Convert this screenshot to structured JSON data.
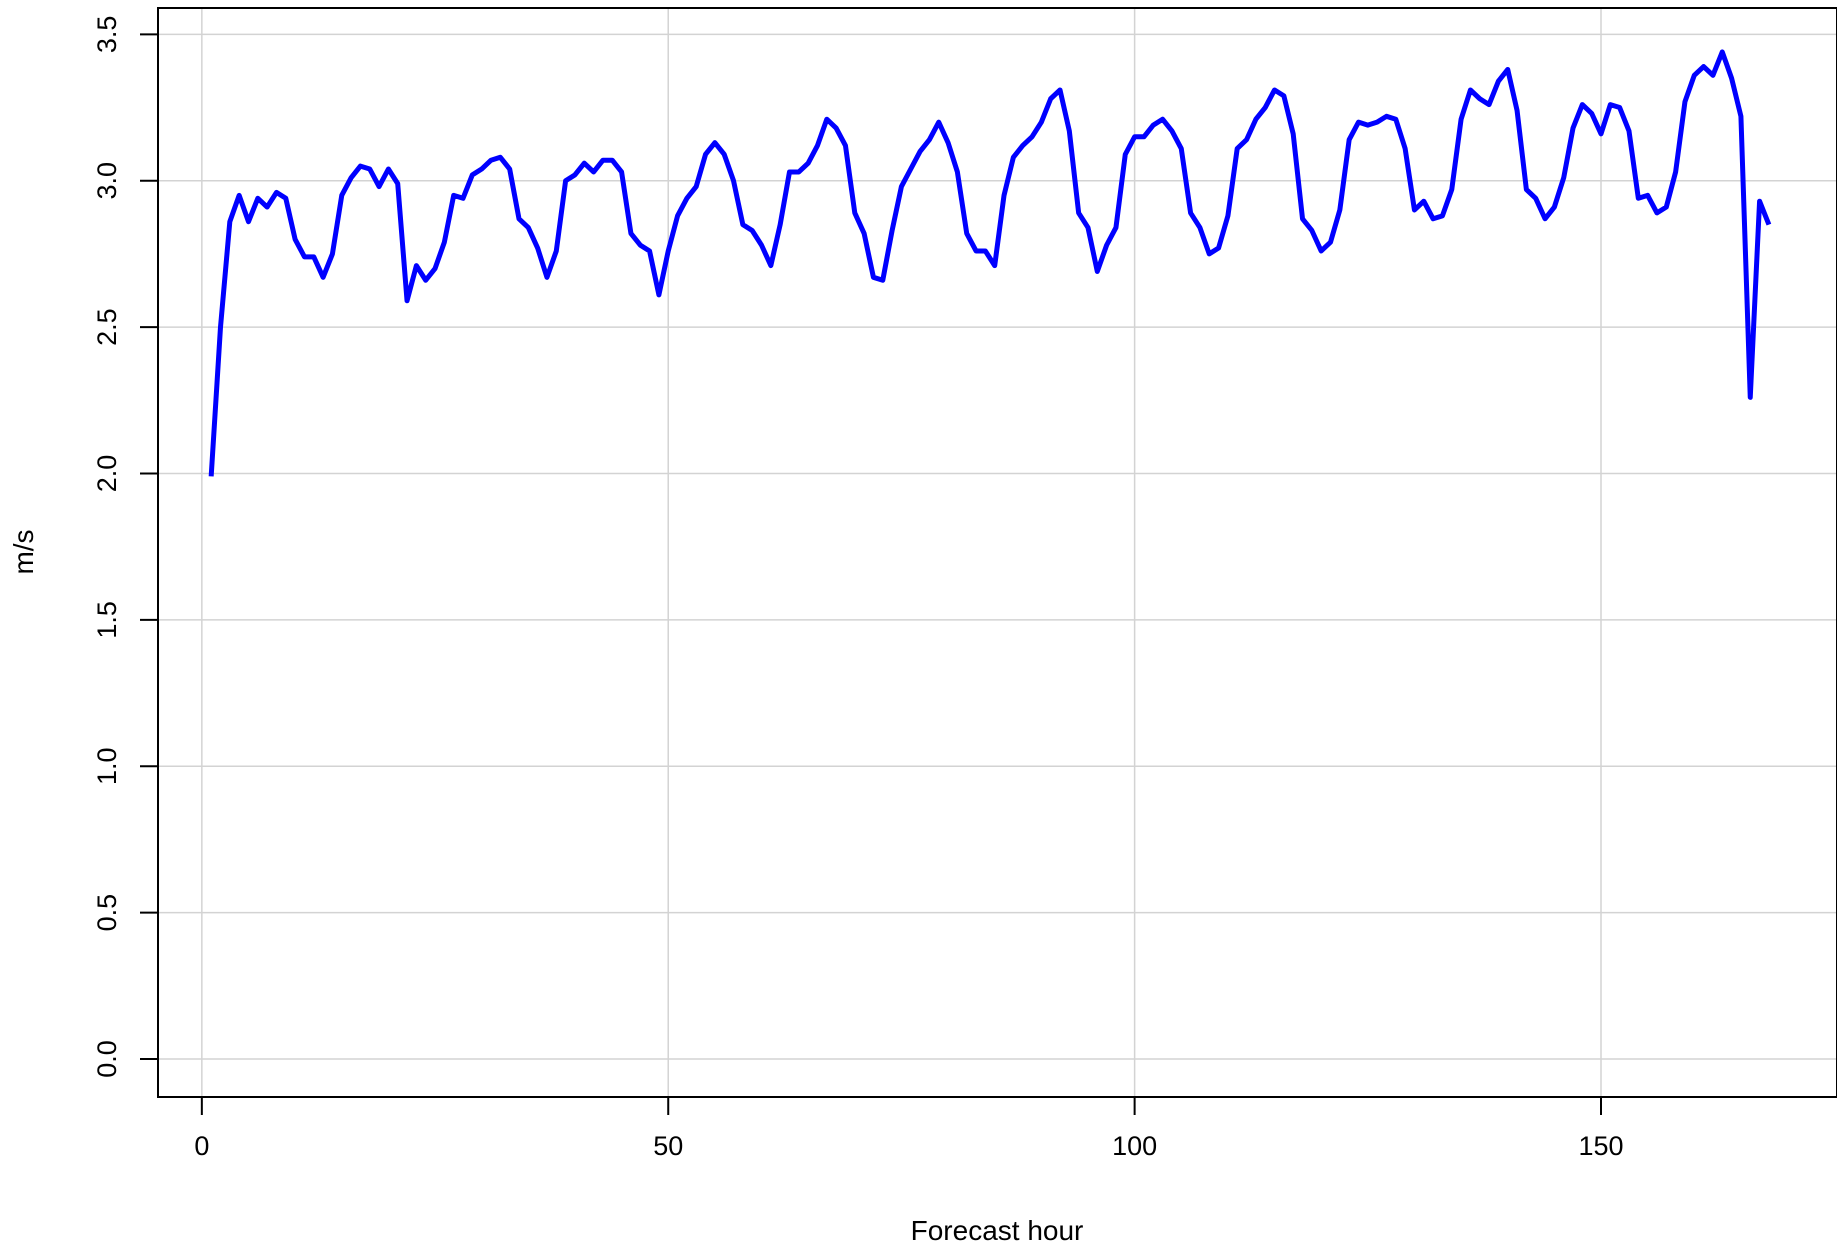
{
  "chart_data": {
    "type": "line",
    "title": "",
    "xlabel": "Forecast hour",
    "ylabel": "m/s",
    "xlim": [
      -4.7,
      175.3
    ],
    "ylim": [
      -0.13,
      3.59
    ],
    "x_ticks": [
      0,
      50,
      100,
      150
    ],
    "x_tick_labels": [
      "0",
      "50",
      "100",
      "150"
    ],
    "y_ticks": [
      0,
      0.5,
      1,
      1.5,
      2,
      2.5,
      3,
      3.5
    ],
    "y_tick_labels": [
      "0.0",
      "0.5",
      "1.0",
      "1.5",
      "2.0",
      "2.5",
      "3.0",
      "3.5"
    ],
    "grid": true,
    "legend": "none",
    "colors": {
      "line": "#0000ff",
      "grid": "#d3d3d3",
      "axis": "#000000"
    },
    "series": [
      {
        "x_start": 1,
        "x_step": 1,
        "values": [
          1.99,
          2.5,
          2.86,
          2.95,
          2.86,
          2.94,
          2.91,
          2.96,
          2.94,
          2.8,
          2.74,
          2.74,
          2.67,
          2.75,
          2.95,
          3.01,
          3.05,
          3.04,
          2.98,
          3.04,
          2.99,
          2.59,
          2.71,
          2.66,
          2.7,
          2.79,
          2.95,
          2.94,
          3.02,
          3.04,
          3.07,
          3.08,
          3.04,
          2.87,
          2.84,
          2.77,
          2.67,
          2.76,
          3.0,
          3.02,
          3.06,
          3.03,
          3.07,
          3.07,
          3.03,
          2.82,
          2.78,
          2.76,
          2.61,
          2.76,
          2.88,
          2.94,
          2.98,
          3.09,
          3.13,
          3.09,
          3.0,
          2.85,
          2.83,
          2.78,
          2.71,
          2.85,
          3.03,
          3.03,
          3.06,
          3.12,
          3.21,
          3.18,
          3.12,
          2.89,
          2.82,
          2.67,
          2.66,
          2.83,
          2.98,
          3.04,
          3.1,
          3.14,
          3.2,
          3.13,
          3.03,
          2.82,
          2.76,
          2.76,
          2.71,
          2.95,
          3.08,
          3.12,
          3.15,
          3.2,
          3.28,
          3.31,
          3.17,
          2.89,
          2.84,
          2.69,
          2.78,
          2.84,
          3.09,
          3.15,
          3.15,
          3.19,
          3.21,
          3.17,
          3.11,
          2.89,
          2.84,
          2.75,
          2.77,
          2.88,
          3.11,
          3.14,
          3.21,
          3.25,
          3.31,
          3.29,
          3.16,
          2.87,
          2.83,
          2.76,
          2.79,
          2.9,
          3.14,
          3.2,
          3.19,
          3.2,
          3.22,
          3.21,
          3.11,
          2.9,
          2.93,
          2.87,
          2.88,
          2.97,
          3.21,
          3.31,
          3.28,
          3.26,
          3.34,
          3.38,
          3.24,
          2.97,
          2.94,
          2.87,
          2.91,
          3.01,
          3.18,
          3.26,
          3.23,
          3.16,
          3.26,
          3.25,
          3.17,
          2.94,
          2.95,
          2.89,
          2.91,
          3.03,
          3.27,
          3.36,
          3.39,
          3.36,
          3.44,
          3.35,
          3.22,
          2.26,
          2.93,
          2.85
        ]
      }
    ]
  }
}
